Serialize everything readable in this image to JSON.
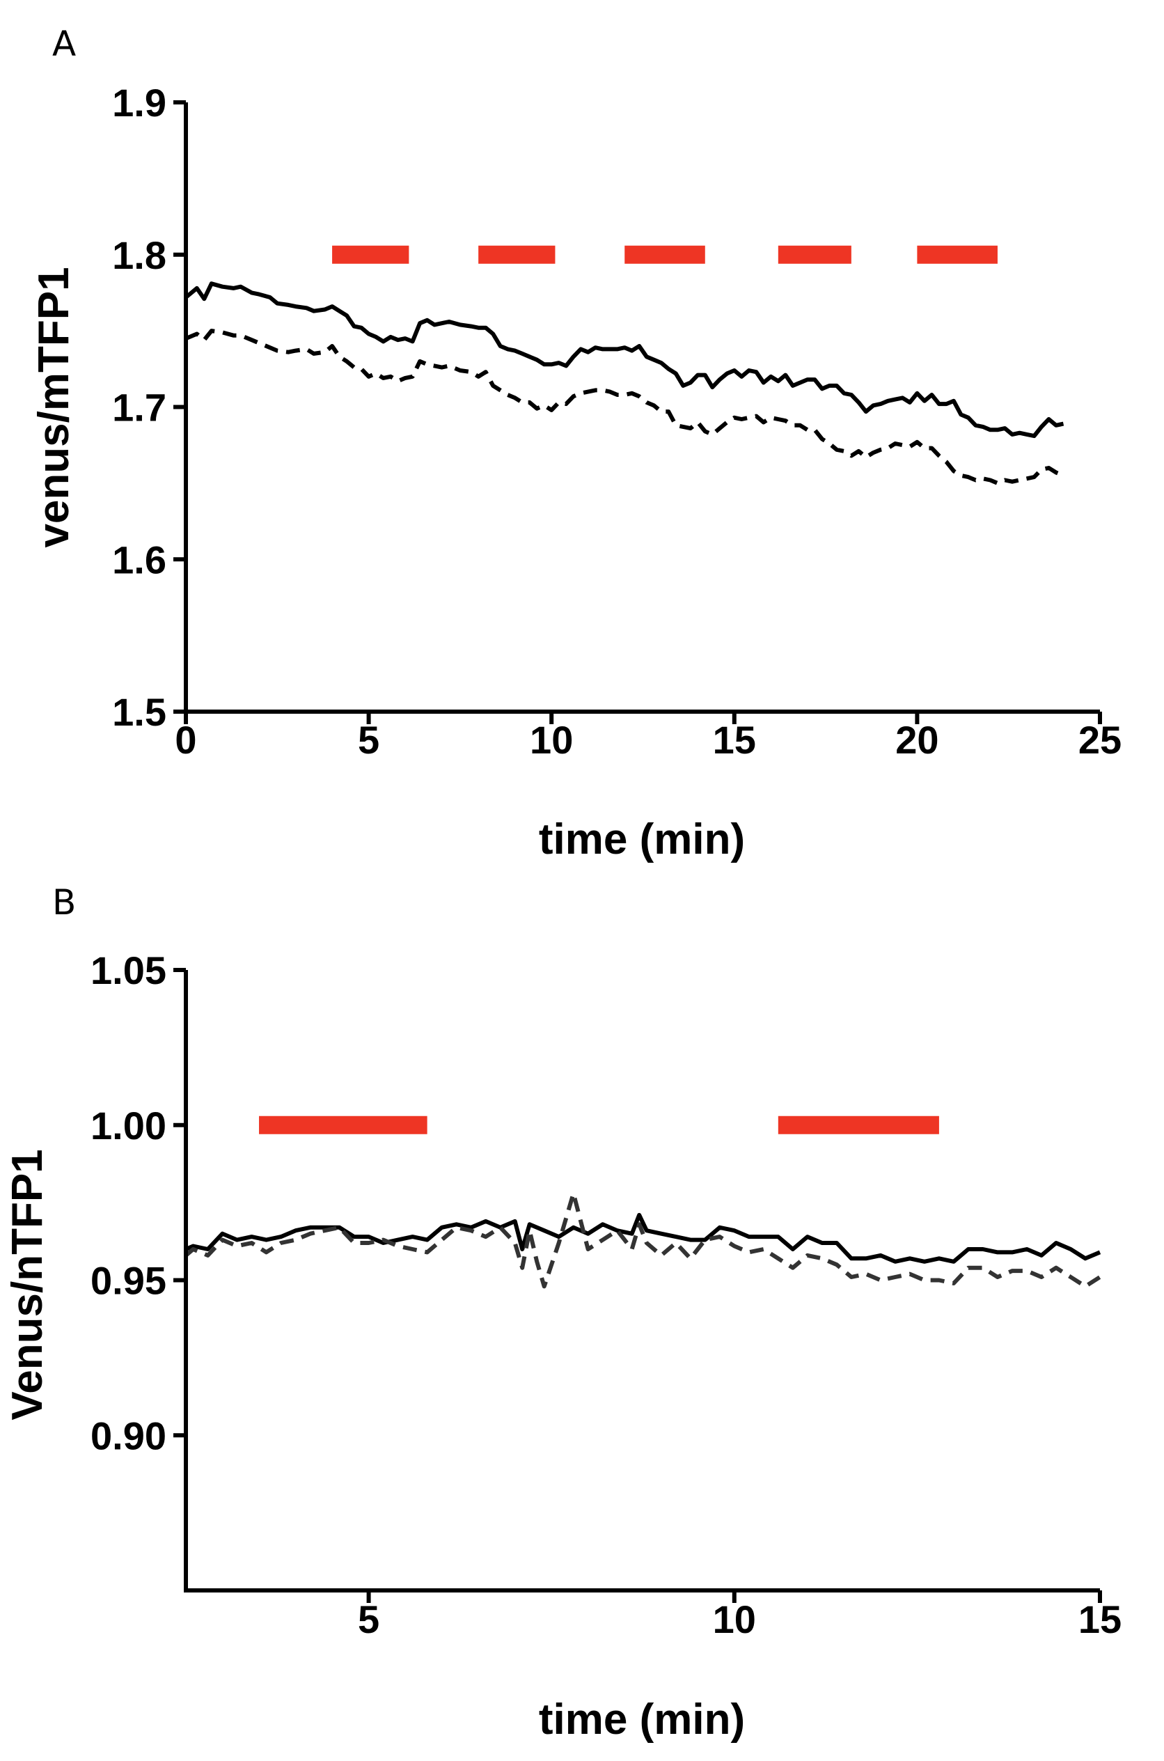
{
  "chart_data": [
    {
      "panel": "A",
      "type": "line",
      "xlabel": "time (min)",
      "ylabel": "venus/mTFP1",
      "xlim": [
        0,
        25
      ],
      "ylim": [
        1.5,
        1.9
      ],
      "x_ticks": [
        "0",
        "5",
        "10",
        "15",
        "20",
        "25"
      ],
      "y_ticks": [
        "1.5",
        "1.6",
        "1.7",
        "1.8",
        "1.9"
      ],
      "grid": false,
      "stimulus_color": "#ee3524",
      "stimulus_y": 1.8,
      "stimulus_bars": [
        [
          4.0,
          6.1
        ],
        [
          8.0,
          10.1
        ],
        [
          12.0,
          14.2
        ],
        [
          16.2,
          18.2
        ],
        [
          20.0,
          22.2
        ]
      ],
      "series": [
        {
          "style": "solid",
          "color": "#000000",
          "x": [
            0,
            0.3,
            0.5,
            0.7,
            1,
            1.3,
            1.5,
            1.8,
            2,
            2.3,
            2.5,
            2.8,
            3,
            3.3,
            3.5,
            3.8,
            4,
            4.2,
            4.4,
            4.6,
            4.8,
            5,
            5.2,
            5.4,
            5.6,
            5.8,
            6,
            6.2,
            6.4,
            6.6,
            6.8,
            7,
            7.2,
            7.5,
            7.8,
            8,
            8.2,
            8.4,
            8.6,
            8.8,
            9,
            9.2,
            9.4,
            9.6,
            9.8,
            10,
            10.2,
            10.4,
            10.6,
            10.8,
            11,
            11.2,
            11.4,
            11.6,
            11.8,
            12,
            12.2,
            12.4,
            12.6,
            12.8,
            13,
            13.2,
            13.4,
            13.6,
            13.8,
            14,
            14.2,
            14.4,
            14.6,
            14.8,
            15,
            15.2,
            15.4,
            15.6,
            15.8,
            16,
            16.2,
            16.4,
            16.6,
            16.8,
            17,
            17.2,
            17.4,
            17.6,
            17.8,
            18,
            18.2,
            18.4,
            18.6,
            18.8,
            19,
            19.2,
            19.4,
            19.6,
            19.8,
            20,
            20.2,
            20.4,
            20.6,
            20.8,
            21,
            21.2,
            21.4,
            21.6,
            21.8,
            22,
            22.2,
            22.4,
            22.6,
            22.8,
            23,
            23.2,
            23.4,
            23.6,
            23.8,
            24
          ],
          "y": [
            1.772,
            1.778,
            1.771,
            1.781,
            1.779,
            1.778,
            1.779,
            1.775,
            1.774,
            1.772,
            1.768,
            1.767,
            1.766,
            1.765,
            1.763,
            1.764,
            1.766,
            1.763,
            1.76,
            1.753,
            1.752,
            1.748,
            1.746,
            1.743,
            1.746,
            1.744,
            1.745,
            1.743,
            1.755,
            1.757,
            1.754,
            1.755,
            1.756,
            1.754,
            1.753,
            1.752,
            1.752,
            1.748,
            1.74,
            1.738,
            1.737,
            1.735,
            1.733,
            1.731,
            1.728,
            1.728,
            1.729,
            1.727,
            1.733,
            1.738,
            1.736,
            1.739,
            1.738,
            1.738,
            1.738,
            1.739,
            1.737,
            1.74,
            1.733,
            1.731,
            1.729,
            1.725,
            1.722,
            1.714,
            1.716,
            1.721,
            1.721,
            1.713,
            1.718,
            1.722,
            1.724,
            1.72,
            1.724,
            1.723,
            1.716,
            1.72,
            1.717,
            1.721,
            1.714,
            1.716,
            1.718,
            1.718,
            1.712,
            1.714,
            1.714,
            1.709,
            1.708,
            1.703,
            1.697,
            1.701,
            1.702,
            1.704,
            1.705,
            1.706,
            1.703,
            1.709,
            1.704,
            1.708,
            1.702,
            1.702,
            1.704,
            1.695,
            1.693,
            1.688,
            1.687,
            1.685,
            1.685,
            1.686,
            1.682,
            1.683,
            1.682,
            1.681,
            1.687,
            1.692,
            1.688,
            1.689
          ]
        },
        {
          "style": "dashed",
          "color": "#000000",
          "x": [
            0,
            0.3,
            0.5,
            0.7,
            1,
            1.3,
            1.5,
            1.8,
            2,
            2.3,
            2.5,
            2.8,
            3,
            3.3,
            3.5,
            3.8,
            4,
            4.2,
            4.4,
            4.6,
            4.8,
            5,
            5.2,
            5.4,
            5.6,
            5.8,
            6,
            6.2,
            6.4,
            6.6,
            6.8,
            7,
            7.2,
            7.5,
            7.8,
            8,
            8.2,
            8.4,
            8.6,
            8.8,
            9,
            9.2,
            9.4,
            9.6,
            9.8,
            10,
            10.2,
            10.4,
            10.6,
            10.8,
            11,
            11.2,
            11.4,
            11.6,
            11.8,
            12,
            12.2,
            12.4,
            12.6,
            12.8,
            13,
            13.2,
            13.4,
            13.6,
            13.8,
            14,
            14.2,
            14.4,
            14.6,
            14.8,
            15,
            15.2,
            15.4,
            15.6,
            15.8,
            16,
            16.2,
            16.4,
            16.6,
            16.8,
            17,
            17.2,
            17.4,
            17.6,
            17.8,
            18,
            18.2,
            18.4,
            18.6,
            18.8,
            19,
            19.2,
            19.4,
            19.6,
            19.8,
            20,
            20.2,
            20.4,
            20.6,
            20.8,
            21,
            21.2,
            21.4,
            21.6,
            21.8,
            22,
            22.2,
            22.4,
            22.6,
            22.8,
            23,
            23.2,
            23.4,
            23.6,
            23.8,
            24
          ],
          "y": [
            1.745,
            1.748,
            1.744,
            1.75,
            1.749,
            1.747,
            1.747,
            1.744,
            1.742,
            1.739,
            1.737,
            1.736,
            1.737,
            1.738,
            1.735,
            1.736,
            1.74,
            1.733,
            1.73,
            1.726,
            1.725,
            1.72,
            1.722,
            1.719,
            1.72,
            1.717,
            1.719,
            1.72,
            1.73,
            1.728,
            1.727,
            1.726,
            1.727,
            1.724,
            1.723,
            1.72,
            1.723,
            1.714,
            1.711,
            1.708,
            1.706,
            1.703,
            1.703,
            1.699,
            1.701,
            1.698,
            1.703,
            1.702,
            1.707,
            1.709,
            1.71,
            1.711,
            1.711,
            1.71,
            1.708,
            1.708,
            1.709,
            1.707,
            1.703,
            1.701,
            1.697,
            1.697,
            1.688,
            1.687,
            1.686,
            1.69,
            1.684,
            1.682,
            1.686,
            1.69,
            1.693,
            1.692,
            1.693,
            1.694,
            1.69,
            1.693,
            1.692,
            1.691,
            1.688,
            1.688,
            1.685,
            1.685,
            1.679,
            1.676,
            1.672,
            1.671,
            1.668,
            1.671,
            1.667,
            1.67,
            1.672,
            1.673,
            1.676,
            1.675,
            1.674,
            1.677,
            1.673,
            1.673,
            1.668,
            1.664,
            1.658,
            1.655,
            1.654,
            1.652,
            1.653,
            1.652,
            1.65,
            1.652,
            1.651,
            1.652,
            1.653,
            1.654,
            1.659,
            1.66,
            1.657,
            1.655
          ]
        }
      ]
    },
    {
      "panel": "B",
      "type": "line",
      "xlabel": "time (min)",
      "ylabel": "Venus/nTFP1",
      "xlim": [
        2.5,
        15
      ],
      "ylim": [
        0.85,
        1.05
      ],
      "x_ticks": [
        "5",
        "10",
        "15"
      ],
      "y_ticks": [
        "0.90",
        "0.95",
        "1.00",
        "1.05"
      ],
      "grid": false,
      "stimulus_color": "#ee3524",
      "stimulus_y": 1.0,
      "stimulus_bars": [
        [
          3.5,
          5.8
        ],
        [
          10.6,
          12.8
        ]
      ],
      "series": [
        {
          "style": "solid",
          "color": "#000000",
          "x": [
            2.5,
            2.6,
            2.8,
            3,
            3.2,
            3.4,
            3.6,
            3.8,
            4,
            4.2,
            4.4,
            4.6,
            4.8,
            5,
            5.2,
            5.4,
            5.6,
            5.8,
            6,
            6.2,
            6.4,
            6.6,
            6.8,
            7,
            7.1,
            7.2,
            7.3,
            7.4,
            7.6,
            7.8,
            8,
            8.2,
            8.4,
            8.6,
            8.7,
            8.8,
            9,
            9.2,
            9.4,
            9.6,
            9.8,
            10,
            10.2,
            10.4,
            10.6,
            10.8,
            11,
            11.2,
            11.4,
            11.6,
            11.8,
            12,
            12.2,
            12.4,
            12.6,
            12.8,
            13,
            13.2,
            13.4,
            13.6,
            13.8,
            14,
            14.2,
            14.4,
            14.6,
            14.8,
            15
          ],
          "y": [
            0.96,
            0.961,
            0.96,
            0.965,
            0.963,
            0.964,
            0.963,
            0.964,
            0.966,
            0.967,
            0.967,
            0.967,
            0.964,
            0.964,
            0.962,
            0.963,
            0.964,
            0.963,
            0.967,
            0.968,
            0.967,
            0.969,
            0.967,
            0.969,
            0.96,
            0.968,
            0.967,
            0.966,
            0.964,
            0.967,
            0.965,
            0.968,
            0.966,
            0.965,
            0.971,
            0.966,
            0.965,
            0.964,
            0.963,
            0.963,
            0.967,
            0.966,
            0.964,
            0.964,
            0.964,
            0.96,
            0.964,
            0.962,
            0.962,
            0.957,
            0.957,
            0.958,
            0.956,
            0.957,
            0.956,
            0.957,
            0.956,
            0.96,
            0.96,
            0.959,
            0.959,
            0.96,
            0.958,
            0.962,
            0.96,
            0.957,
            0.959
          ]
        },
        {
          "style": "dashed",
          "color": "#333333",
          "x": [
            2.5,
            2.6,
            2.8,
            3,
            3.2,
            3.4,
            3.6,
            3.8,
            4,
            4.2,
            4.4,
            4.6,
            4.8,
            5,
            5.2,
            5.4,
            5.6,
            5.8,
            6,
            6.2,
            6.4,
            6.6,
            6.8,
            7,
            7.1,
            7.2,
            7.3,
            7.4,
            7.6,
            7.8,
            8,
            8.2,
            8.4,
            8.6,
            8.7,
            8.8,
            9,
            9.2,
            9.4,
            9.6,
            9.8,
            10,
            10.2,
            10.4,
            10.6,
            10.8,
            11,
            11.2,
            11.4,
            11.6,
            11.8,
            12,
            12.2,
            12.4,
            12.6,
            12.8,
            13,
            13.2,
            13.4,
            13.6,
            13.8,
            14,
            14.2,
            14.4,
            14.6,
            14.8,
            15
          ],
          "y": [
            0.958,
            0.96,
            0.958,
            0.963,
            0.961,
            0.962,
            0.959,
            0.962,
            0.963,
            0.965,
            0.966,
            0.967,
            0.962,
            0.962,
            0.963,
            0.961,
            0.96,
            0.959,
            0.963,
            0.967,
            0.966,
            0.964,
            0.967,
            0.962,
            0.954,
            0.966,
            0.956,
            0.948,
            0.962,
            0.978,
            0.96,
            0.963,
            0.966,
            0.96,
            0.968,
            0.962,
            0.958,
            0.962,
            0.957,
            0.963,
            0.964,
            0.961,
            0.959,
            0.96,
            0.957,
            0.954,
            0.958,
            0.957,
            0.955,
            0.951,
            0.952,
            0.95,
            0.951,
            0.952,
            0.95,
            0.95,
            0.949,
            0.954,
            0.954,
            0.951,
            0.953,
            0.953,
            0.951,
            0.954,
            0.951,
            0.948,
            0.951
          ]
        }
      ]
    }
  ]
}
